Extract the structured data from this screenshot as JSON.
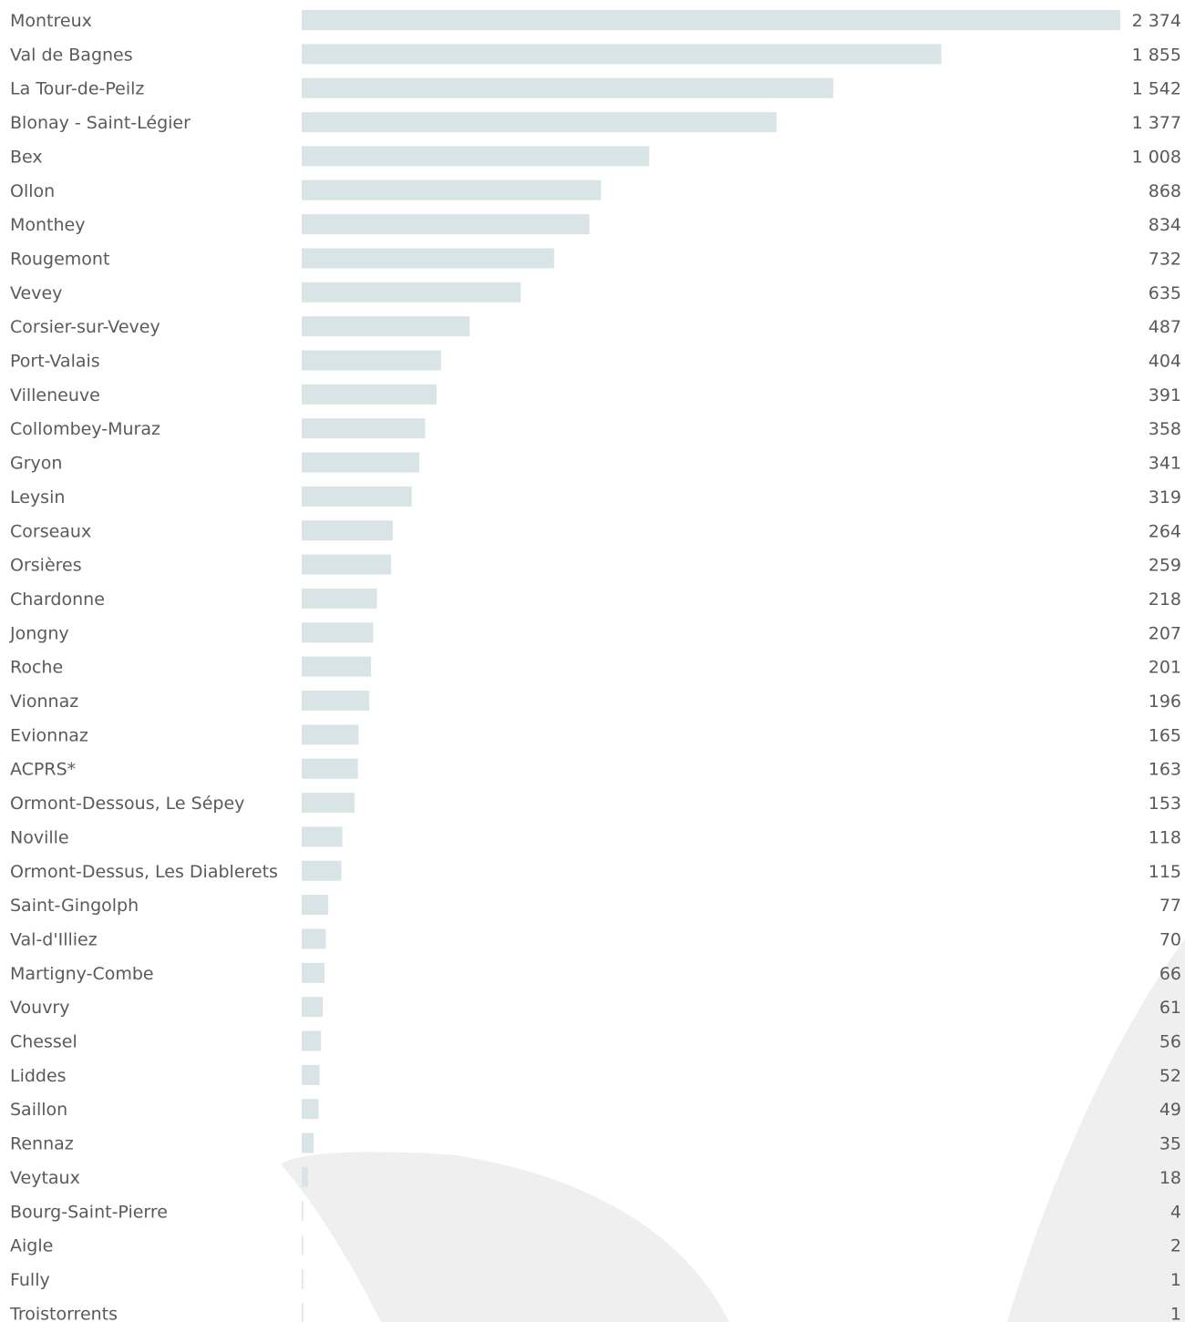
{
  "chart_data": {
    "type": "bar",
    "orientation": "horizontal",
    "categories": [
      "Montreux",
      "Val de Bagnes",
      "La Tour-de-Peilz",
      "Blonay - Saint-Légier",
      "Bex",
      "Ollon",
      "Monthey",
      "Rougemont",
      "Vevey",
      "Corsier-sur-Vevey",
      "Port-Valais",
      "Villeneuve",
      "Collombey-Muraz",
      "Gryon",
      "Leysin",
      "Corseaux",
      "Orsières",
      "Chardonne",
      "Jongny",
      "Roche",
      "Vionnaz",
      "Evionnaz",
      "ACPRS*",
      "Ormont-Dessous, Le Sépey",
      "Noville",
      "Ormont-Dessus, Les Diablerets",
      "Saint-Gingolph",
      "Val-d'Illiez",
      "Martigny-Combe",
      "Vouvry",
      "Chessel",
      "Liddes",
      "Saillon",
      "Rennaz",
      "Veytaux",
      "Bourg-Saint-Pierre",
      "Aigle",
      "Fully",
      "Troistorrents"
    ],
    "values": [
      2374,
      1855,
      1542,
      1377,
      1008,
      868,
      834,
      732,
      635,
      487,
      404,
      391,
      358,
      341,
      319,
      264,
      259,
      218,
      207,
      201,
      196,
      165,
      163,
      153,
      118,
      115,
      77,
      70,
      66,
      61,
      56,
      52,
      49,
      35,
      18,
      4,
      2,
      1,
      1
    ],
    "value_labels": [
      "2 374",
      "1 855",
      "1 542",
      "1 377",
      "1 008",
      "868",
      "834",
      "732",
      "635",
      "487",
      "404",
      "391",
      "358",
      "341",
      "319",
      "264",
      "259",
      "218",
      "207",
      "201",
      "196",
      "165",
      "163",
      "153",
      "118",
      "115",
      "77",
      "70",
      "66",
      "61",
      "56",
      "52",
      "49",
      "35",
      "18",
      "4",
      "2",
      "1",
      "1"
    ],
    "xlim": [
      0,
      2374
    ],
    "grid": false,
    "legend": "none",
    "bar_color": "#d8e4e5"
  },
  "colors": {
    "text": "#5a5a5a",
    "background_shape": "#efefef"
  }
}
